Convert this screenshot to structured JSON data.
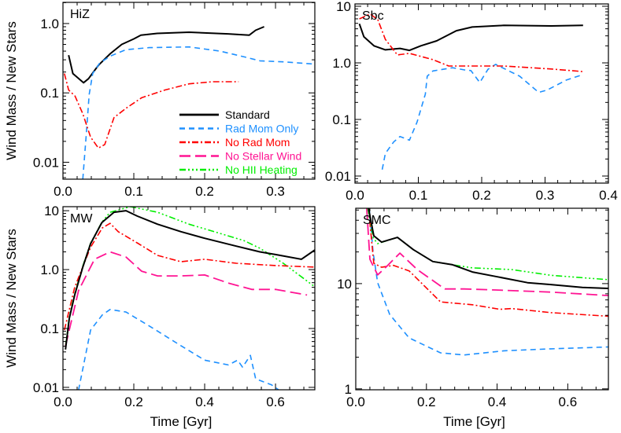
{
  "legend": [
    {
      "key": "standard",
      "label": "Standard",
      "color": "#000000"
    },
    {
      "key": "radmom",
      "label": "Rad Mom Only",
      "color": "#1e90ff"
    },
    {
      "key": "noradmom",
      "label": "No Rad Mom",
      "color": "#ff0000"
    },
    {
      "key": "nowind",
      "label": "No Stellar Wind",
      "color": "#ff1493"
    },
    {
      "key": "nohii",
      "label": "No HII Heating",
      "color": "#00ee00"
    }
  ],
  "chart_data": [
    {
      "type": "line",
      "title": "HiZ",
      "xlabel": "",
      "ylabel": "Wind Mass / New Stars",
      "yscale": "log",
      "xlim": [
        0,
        0.3555
      ],
      "ylim": [
        0.0057,
        2.02
      ],
      "xticks": [
        {
          "v": 0,
          "label": "0.0"
        },
        {
          "v": 0.1,
          "label": "0.1"
        },
        {
          "v": 0.2,
          "label": "0.2"
        },
        {
          "v": 0.3,
          "label": "0.3"
        }
      ],
      "yticks": [
        {
          "v": 0.01,
          "label": "0.01"
        },
        {
          "v": 0.1,
          "label": "0.1"
        },
        {
          "v": 1,
          "label": "1.0"
        }
      ],
      "legend_position": "bottom-right",
      "series": [
        {
          "key": "standard",
          "x": [
            0.008,
            0.014,
            0.029,
            0.036,
            0.05,
            0.067,
            0.083,
            0.1,
            0.11,
            0.133,
            0.178,
            0.233,
            0.263,
            0.272,
            0.284
          ],
          "y": [
            0.35,
            0.19,
            0.14,
            0.16,
            0.25,
            0.37,
            0.5,
            0.6,
            0.68,
            0.72,
            0.75,
            0.71,
            0.68,
            0.8,
            0.9
          ]
        },
        {
          "key": "radmom",
          "x": [
            0.028,
            0.033,
            0.037,
            0.042,
            0.052,
            0.067,
            0.089,
            0.122,
            0.178,
            0.222,
            0.256,
            0.278,
            0.311,
            0.356
          ],
          "y": [
            0.0057,
            0.026,
            0.095,
            0.19,
            0.27,
            0.34,
            0.42,
            0.45,
            0.46,
            0.4,
            0.33,
            0.29,
            0.28,
            0.26
          ]
        },
        {
          "key": "noradmom",
          "x": [
            0.002,
            0.008,
            0.017,
            0.028,
            0.039,
            0.05,
            0.059,
            0.072,
            0.089,
            0.111,
            0.144,
            0.178,
            0.211,
            0.248
          ],
          "y": [
            0.19,
            0.11,
            0.09,
            0.05,
            0.023,
            0.016,
            0.018,
            0.044,
            0.06,
            0.085,
            0.11,
            0.135,
            0.145,
            0.145
          ]
        }
      ]
    },
    {
      "type": "line",
      "title": "Sbc",
      "xlabel": "",
      "ylabel": "",
      "yscale": "log",
      "xlim": [
        0,
        0.4
      ],
      "ylim": [
        0.0075,
        11
      ],
      "xticks": [
        {
          "v": 0,
          "label": "0.0"
        },
        {
          "v": 0.1,
          "label": "0.1"
        },
        {
          "v": 0.2,
          "label": "0.2"
        },
        {
          "v": 0.3,
          "label": "0.3"
        },
        {
          "v": 0.4,
          "label": "0.4"
        }
      ],
      "yticks": [
        {
          "v": 0.01,
          "label": "0.01"
        },
        {
          "v": 0.1,
          "label": "0.1"
        },
        {
          "v": 1,
          "label": "1.0"
        },
        {
          "v": 10,
          "label": "10"
        }
      ],
      "series": [
        {
          "key": "standard",
          "x": [
            0.007,
            0.014,
            0.03,
            0.048,
            0.071,
            0.086,
            0.104,
            0.129,
            0.16,
            0.185,
            0.235,
            0.31,
            0.36
          ],
          "y": [
            4.9,
            2.9,
            2.0,
            1.7,
            1.8,
            1.66,
            2.0,
            2.45,
            3.7,
            4.3,
            4.6,
            4.5,
            4.6
          ]
        },
        {
          "key": "radmom",
          "x": [
            0.043,
            0.048,
            0.061,
            0.071,
            0.086,
            0.098,
            0.111,
            0.114,
            0.123,
            0.154,
            0.173,
            0.183,
            0.197,
            0.21,
            0.222,
            0.26,
            0.29,
            0.303,
            0.334,
            0.36
          ],
          "y": [
            0.013,
            0.025,
            0.04,
            0.05,
            0.043,
            0.09,
            0.28,
            0.58,
            0.72,
            0.82,
            0.75,
            0.73,
            0.45,
            0.77,
            0.94,
            0.58,
            0.3,
            0.33,
            0.5,
            0.62
          ]
        },
        {
          "key": "noradmom",
          "x": [
            0.007,
            0.024,
            0.036,
            0.048,
            0.067,
            0.086,
            0.123,
            0.148,
            0.235,
            0.31,
            0.36
          ],
          "y": [
            6.0,
            7.3,
            5.8,
            2.6,
            1.38,
            1.47,
            1.14,
            0.88,
            0.88,
            0.78,
            0.7
          ]
        }
      ]
    },
    {
      "type": "line",
      "title": "MW",
      "xlabel": "Time  [Gyr]",
      "ylabel": "Wind Mass / New Stars",
      "yscale": "log",
      "xlim": [
        0,
        0.711
      ],
      "ylim": [
        0.0091,
        11.7
      ],
      "xticks": [
        {
          "v": 0,
          "label": "0.0"
        },
        {
          "v": 0.2,
          "label": "0.2"
        },
        {
          "v": 0.4,
          "label": "0.4"
        },
        {
          "v": 0.6,
          "label": "0.6"
        }
      ],
      "yticks": [
        {
          "v": 0.01,
          "label": "0.01"
        },
        {
          "v": 0.1,
          "label": "0.1"
        },
        {
          "v": 1,
          "label": "1.0"
        },
        {
          "v": 10,
          "label": "10"
        }
      ],
      "series": [
        {
          "key": "nohii",
          "x": [
            0.007,
            0.018,
            0.033,
            0.056,
            0.078,
            0.11,
            0.133,
            0.19,
            0.267,
            0.356,
            0.444,
            0.511,
            0.556,
            0.622,
            0.711
          ],
          "y": [
            0.05,
            0.16,
            0.39,
            1.15,
            2.8,
            6.4,
            9.4,
            11.7,
            9.4,
            5.9,
            4.1,
            3.1,
            2.3,
            1.28,
            0.51
          ]
        },
        {
          "key": "noradmom",
          "x": [
            0.004,
            0.033,
            0.078,
            0.111,
            0.133,
            0.156,
            0.211,
            0.267,
            0.333,
            0.4,
            0.489,
            0.6,
            0.711
          ],
          "y": [
            0.094,
            0.5,
            2.4,
            5.1,
            6.1,
            4.4,
            2.8,
            1.74,
            1.36,
            1.5,
            1.28,
            1.17,
            1.1
          ]
        },
        {
          "key": "nowind",
          "x": [
            0.007,
            0.044,
            0.089,
            0.133,
            0.178,
            0.222,
            0.267,
            0.333,
            0.4,
            0.467,
            0.533,
            0.6,
            0.689
          ],
          "y": [
            0.05,
            0.44,
            1.5,
            2.0,
            1.63,
            0.94,
            0.78,
            0.78,
            0.81,
            0.59,
            0.46,
            0.46,
            0.37
          ]
        },
        {
          "key": "radmom",
          "x": [
            0.044,
            0.078,
            0.111,
            0.133,
            0.178,
            0.244,
            0.333,
            0.4,
            0.467,
            0.493,
            0.507,
            0.529,
            0.544,
            0.589,
            0.622
          ],
          "y": [
            0.009,
            0.094,
            0.17,
            0.21,
            0.19,
            0.11,
            0.051,
            0.029,
            0.024,
            0.029,
            0.022,
            0.035,
            0.014,
            0.011,
            0.008
          ]
        },
        {
          "key": "standard",
          "x": [
            0.007,
            0.018,
            0.033,
            0.056,
            0.078,
            0.11,
            0.144,
            0.178,
            0.21,
            0.267,
            0.333,
            0.4,
            0.489,
            0.556,
            0.6,
            0.673,
            0.711
          ],
          "y": [
            0.044,
            0.15,
            0.37,
            1.1,
            2.75,
            6.3,
            9.4,
            10,
            8.1,
            5.9,
            4.4,
            3.4,
            2.5,
            2.0,
            1.8,
            1.5,
            2.15
          ]
        }
      ]
    },
    {
      "type": "line",
      "title": "SMC",
      "xlabel": "Time  [Gyr]",
      "ylabel": "",
      "yscale": "log",
      "xlim": [
        0,
        0.715
      ],
      "ylim": [
        0.98,
        52
      ],
      "xticks": [
        {
          "v": 0,
          "label": "0.0"
        },
        {
          "v": 0.2,
          "label": "0.2"
        },
        {
          "v": 0.4,
          "label": "0.4"
        },
        {
          "v": 0.6,
          "label": "0.6"
        }
      ],
      "yticks": [
        {
          "v": 1,
          "label": "1"
        },
        {
          "v": 10,
          "label": "10"
        }
      ],
      "series": [
        {
          "key": "radmom",
          "x": [
            0.038,
            0.049,
            0.062,
            0.096,
            0.151,
            0.24,
            0.307,
            0.419,
            0.552,
            0.715
          ],
          "y": [
            52,
            20,
            10.2,
            5.1,
            3.05,
            2.2,
            2.1,
            2.3,
            2.4,
            2.5
          ]
        },
        {
          "key": "noradmom",
          "x": [
            0.036,
            0.051,
            0.073,
            0.107,
            0.151,
            0.24,
            0.33,
            0.408,
            0.441,
            0.552,
            0.715
          ],
          "y": [
            52,
            15.6,
            14.3,
            14.9,
            13.2,
            6.7,
            6.3,
            5.7,
            5.8,
            5.3,
            4.9
          ]
        },
        {
          "key": "nowind",
          "x": [
            0.031,
            0.04,
            0.062,
            0.085,
            0.125,
            0.174,
            0.252,
            0.307,
            0.396,
            0.552,
            0.715
          ],
          "y": [
            52,
            17,
            12.1,
            14.3,
            19.5,
            13.6,
            8.9,
            8.9,
            8.7,
            8.3,
            7.7
          ]
        },
        {
          "key": "nohii",
          "x": [
            0.034,
            0.05,
            0.062,
            0.118,
            0.163,
            0.218,
            0.274,
            0.33,
            0.441,
            0.552,
            0.715
          ],
          "y": [
            52,
            27,
            24,
            27.5,
            21,
            16.2,
            15.1,
            14.1,
            13.6,
            12,
            10.9
          ]
        },
        {
          "key": "standard",
          "x": [
            0.036,
            0.051,
            0.073,
            0.118,
            0.163,
            0.218,
            0.274,
            0.33,
            0.396,
            0.486,
            0.552,
            0.641,
            0.715
          ],
          "y": [
            52,
            28.5,
            24.8,
            27.5,
            21,
            16.2,
            15.1,
            12.9,
            11.7,
            10.2,
            9.8,
            9.2,
            9.0
          ]
        }
      ]
    }
  ]
}
